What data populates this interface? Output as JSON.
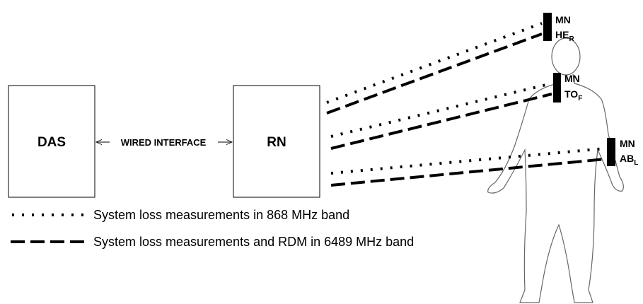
{
  "nodes": [
    {
      "label": "DAS"
    },
    {
      "label": "RN"
    }
  ],
  "link": {
    "label": "WIRED INTERFACE"
  },
  "sensors": [
    {
      "line1": "MN",
      "line2": "HE",
      "sub": "R"
    },
    {
      "line1": "MN",
      "line2": "TO",
      "sub": "F"
    },
    {
      "line1": "MN",
      "line2": "AB",
      "sub": "L"
    }
  ],
  "legend": [
    {
      "label": "System loss measurements in 868 MHz band"
    },
    {
      "label": "System loss measurements and RDM in 6489 MHz band"
    }
  ]
}
